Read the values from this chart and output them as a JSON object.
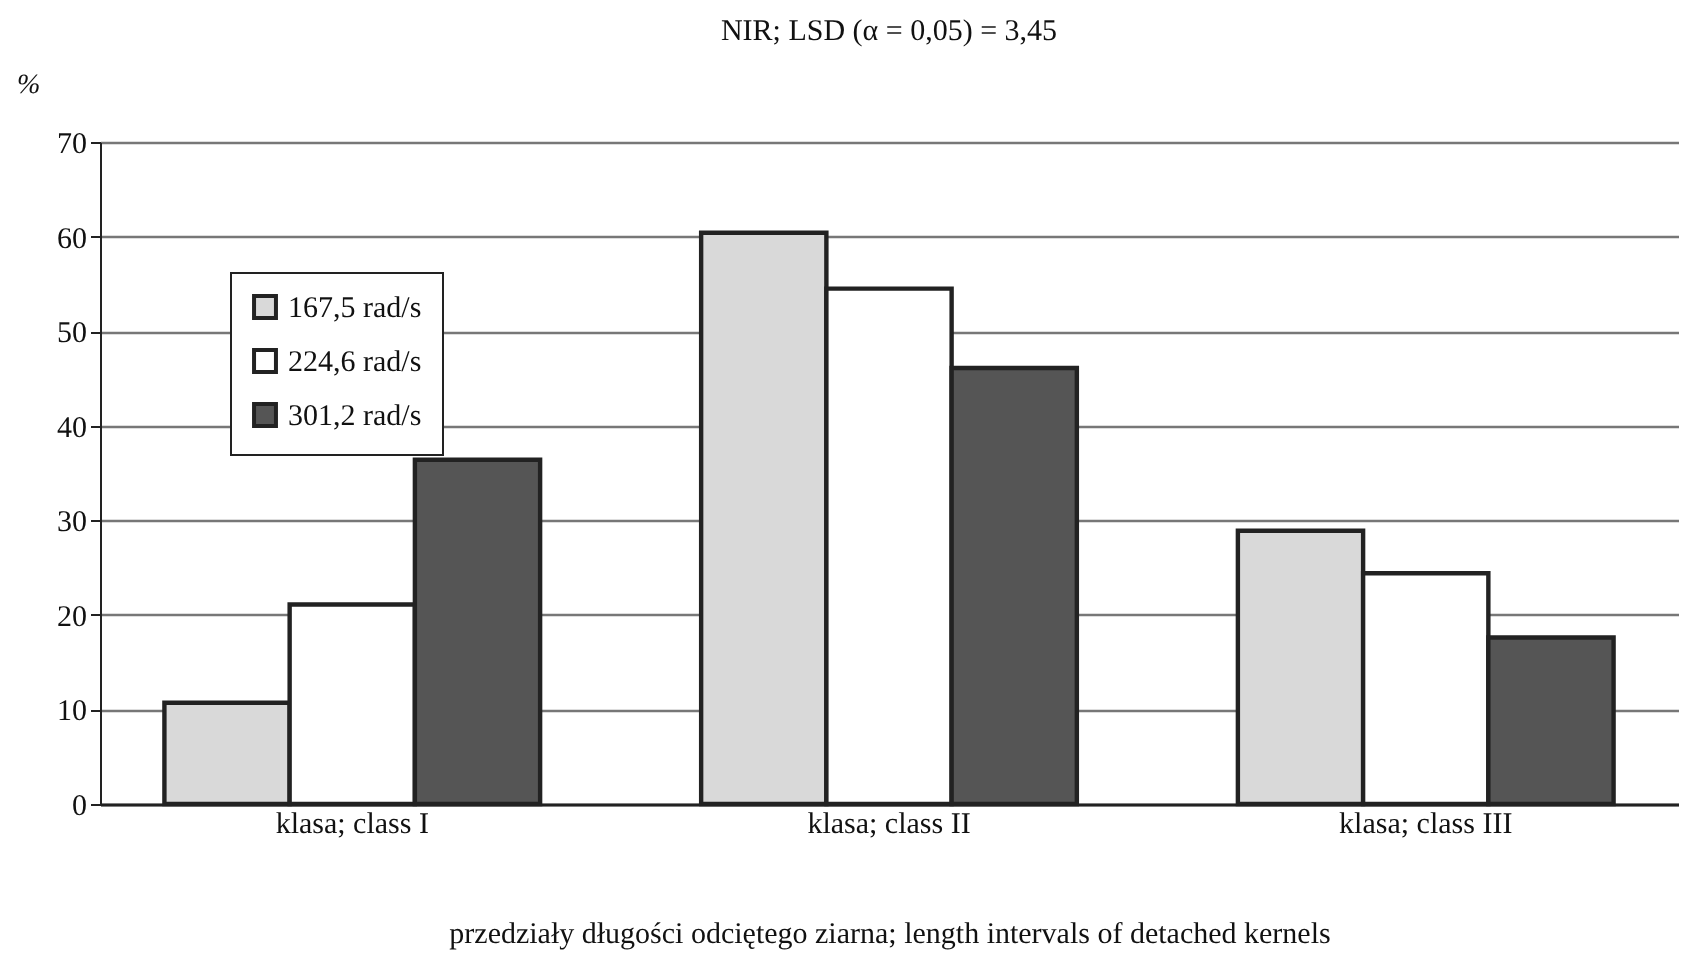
{
  "chart_data": {
    "type": "bar",
    "title": "NIR; LSD (α = 0,05) = 3,45",
    "xlabel": "przedziały długości odciętego ziarna; length intervals of detached kernels",
    "ylabel": "%",
    "categories": [
      "klasa; class I",
      "klasa; class II",
      "klasa; class III"
    ],
    "series": [
      {
        "name": "167,5 rad/s",
        "color": "#d9d9d9",
        "values": [
          10.7,
          60.4,
          28.9
        ]
      },
      {
        "name": "224,6 rad/s",
        "color": "#ffffff",
        "values": [
          21.1,
          54.5,
          24.4
        ]
      },
      {
        "name": "301,2 rad/s",
        "color": "#555555",
        "values": [
          36.4,
          46.1,
          17.6
        ]
      }
    ],
    "ylim": [
      0,
      70
    ],
    "yticks": [
      0,
      10,
      20,
      30,
      40,
      50,
      60,
      70
    ],
    "grid": "y",
    "legend": "top left"
  }
}
